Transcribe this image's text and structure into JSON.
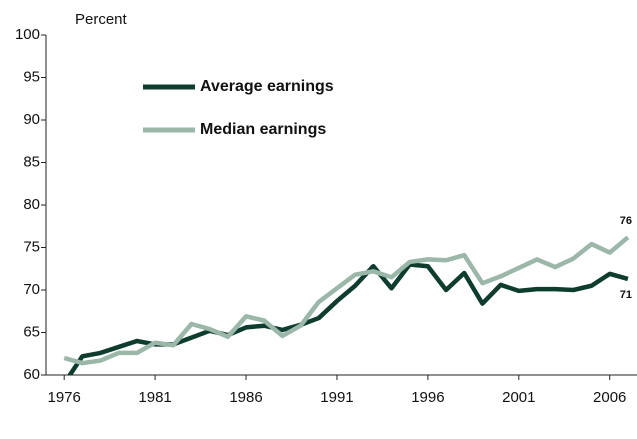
{
  "chart_data": {
    "type": "line",
    "y_label": "Percent",
    "x": [
      1976,
      1977,
      1978,
      1979,
      1980,
      1981,
      1982,
      1983,
      1984,
      1985,
      1986,
      1987,
      1988,
      1989,
      1990,
      1991,
      1992,
      1993,
      1994,
      1995,
      1996,
      1997,
      1998,
      1999,
      2000,
      2001,
      2002,
      2003,
      2004,
      2005,
      2006,
      2007
    ],
    "series": [
      {
        "name": "Average earnings",
        "color": "#0e3d2f",
        "values": [
          59,
          62.2,
          62.6,
          63.3,
          64.0,
          63.6,
          63.6,
          64.4,
          65.2,
          64.7,
          65.6,
          65.8,
          65.3,
          65.9,
          66.7,
          68.7,
          70.5,
          72.8,
          70.2,
          73.0,
          72.8,
          70.0,
          72.0,
          68.4,
          70.6,
          69.9,
          70.1,
          70.1,
          70.0,
          70.5,
          71.9,
          71.3
        ],
        "value_labels": [
          null,
          null,
          null,
          null,
          null,
          null,
          null,
          null,
          null,
          null,
          null,
          null,
          null,
          null,
          null,
          null,
          null,
          null,
          null,
          null,
          null,
          null,
          null,
          null,
          null,
          null,
          null,
          null,
          null,
          null,
          null,
          "71"
        ]
      },
      {
        "name": "Median earnings",
        "color": "#9bb7a9",
        "values": [
          62.0,
          61.4,
          61.7,
          62.6,
          62.6,
          63.8,
          63.5,
          66.0,
          65.4,
          64.5,
          66.9,
          66.4,
          64.6,
          65.8,
          68.6,
          70.2,
          71.8,
          72.2,
          71.5,
          73.3,
          73.6,
          73.5,
          74.1,
          70.8,
          71.6,
          72.6,
          73.6,
          72.7,
          73.7,
          75.4,
          74.4,
          76.2
        ],
        "value_labels": [
          null,
          null,
          null,
          null,
          null,
          null,
          null,
          null,
          null,
          null,
          null,
          null,
          null,
          null,
          null,
          null,
          null,
          null,
          null,
          null,
          null,
          null,
          null,
          null,
          null,
          null,
          null,
          null,
          null,
          null,
          null,
          "76"
        ]
      }
    ],
    "xlim": [
      1975,
      2007.5
    ],
    "xticks": [
      1976,
      1981,
      1986,
      1991,
      1996,
      2001,
      2006
    ],
    "ylim": [
      60,
      100
    ],
    "yticks": [
      60,
      65,
      70,
      75,
      80,
      85,
      90,
      95,
      100
    ],
    "grid": false
  }
}
